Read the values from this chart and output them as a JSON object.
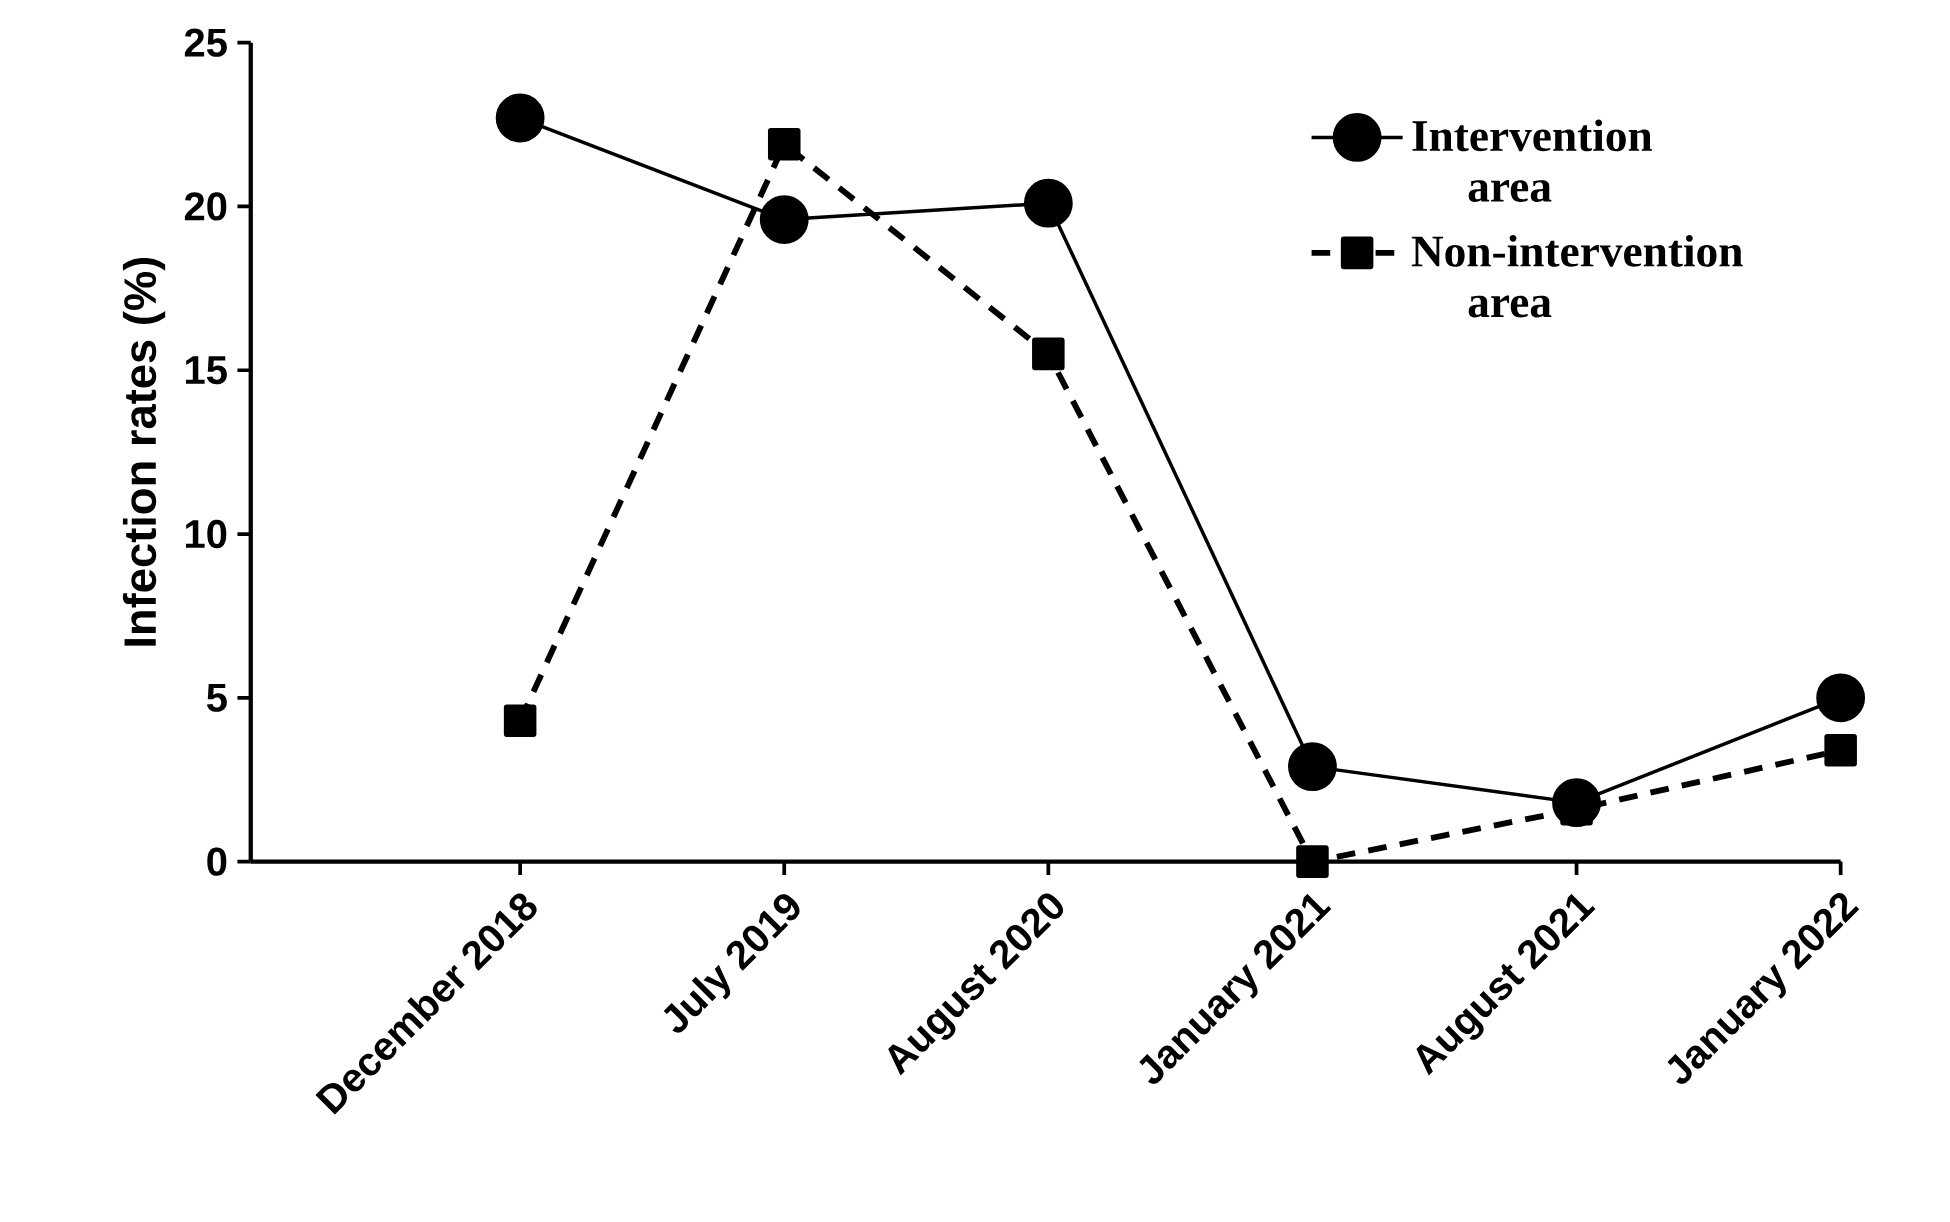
{
  "chart_data": {
    "type": "line",
    "ylabel": "Infection rates (%)",
    "categories": [
      "December 2018",
      "July 2019",
      "August 2020",
      "January 2021",
      "August 2021",
      "January 2022"
    ],
    "series": [
      {
        "name": "Intervention area",
        "color": "#000000",
        "marker": "circle",
        "line_style": "solid",
        "values": [
          22.7,
          19.6,
          20.1,
          2.9,
          1.8,
          5.0
        ]
      },
      {
        "name": "Non-intervention area",
        "color": "#000000",
        "marker": "square",
        "line_style": "dashed",
        "values": [
          4.3,
          21.9,
          15.5,
          0,
          1.6,
          3.4
        ]
      }
    ],
    "ylim": [
      0,
      25
    ],
    "yticks": [
      0,
      5,
      10,
      15,
      20,
      25
    ],
    "grid": false,
    "legend": "top right"
  }
}
